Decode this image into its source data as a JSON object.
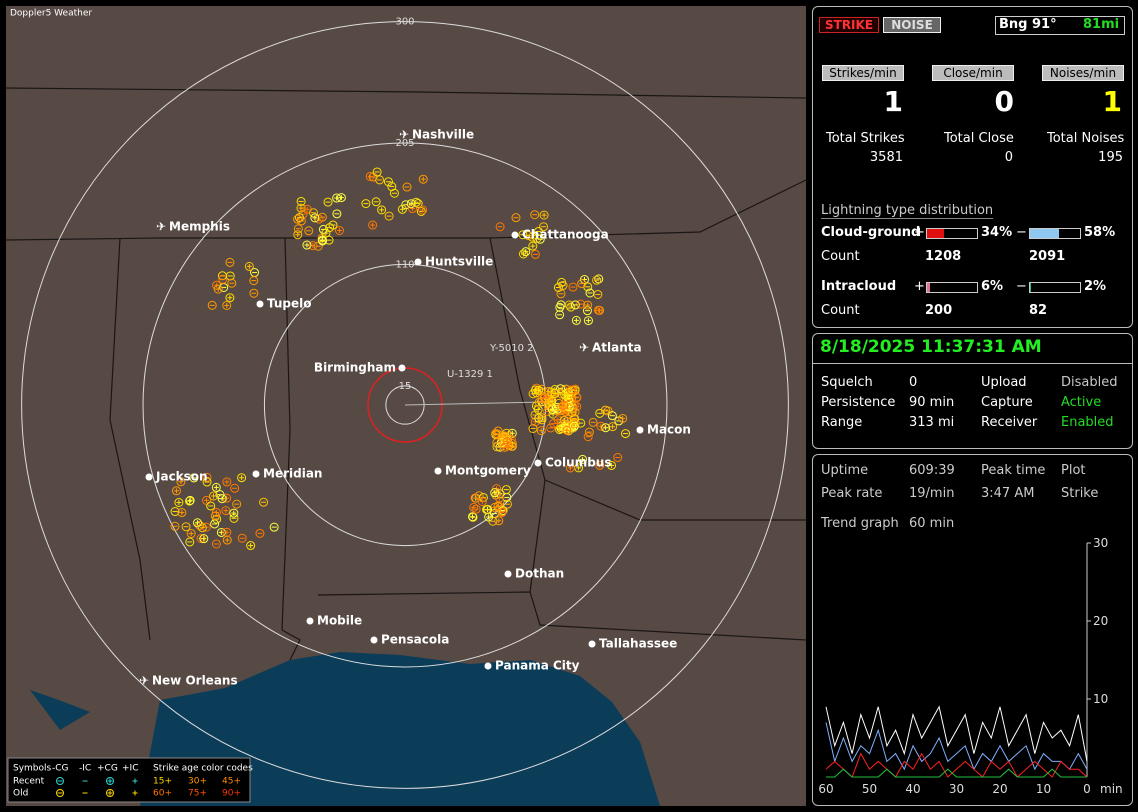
{
  "app_title": "Doppler5 Weather",
  "map": {
    "range_miles": 313,
    "range_rings": [
      300,
      205,
      110,
      15
    ],
    "cities": [
      {
        "name": "Nashville",
        "airport": true
      },
      {
        "name": "Memphis",
        "airport": true
      },
      {
        "name": "Chattanooga",
        "airport": false
      },
      {
        "name": "Huntsville",
        "airport": false
      },
      {
        "name": "Tupelo",
        "airport": false
      },
      {
        "name": "Birmingham",
        "airport": false
      },
      {
        "name": "Atlanta",
        "airport": true
      },
      {
        "name": "Macon",
        "airport": false
      },
      {
        "name": "Columbus",
        "airport": false
      },
      {
        "name": "Montgomery",
        "airport": false
      },
      {
        "name": "Meridian",
        "airport": false
      },
      {
        "name": "Jackson",
        "airport": false
      },
      {
        "name": "Dothan",
        "airport": false
      },
      {
        "name": "Mobile",
        "airport": false
      },
      {
        "name": "Pensacola",
        "airport": false
      },
      {
        "name": "Tallahassee",
        "airport": false
      },
      {
        "name": "Panama City",
        "airport": false
      },
      {
        "name": "New Orleans",
        "airport": true
      }
    ],
    "stations": [
      "Y-5010 2",
      "U-1329 1"
    ],
    "legend": {
      "symbols_label": "Symbols",
      "columns": [
        "-CG",
        "-IC",
        "+CG",
        "+IC"
      ],
      "age_label": "Strike age color codes",
      "rows": [
        {
          "label": "Recent",
          "ages": [
            "15+",
            "30+",
            "45+"
          ]
        },
        {
          "label": "Old",
          "ages": [
            "60+",
            "75+",
            "90+"
          ]
        }
      ]
    }
  },
  "status": {
    "buttons": [
      "STRIKE",
      "NOISE"
    ],
    "bearing": "Bng 91°",
    "distance": "81mi",
    "rates": [
      {
        "label": "Strikes/min",
        "value": 1
      },
      {
        "label": "Close/min",
        "value": 0
      },
      {
        "label": "Noises/min",
        "value": 1
      }
    ],
    "totals": [
      {
        "label": "Total Strikes",
        "value": 3581
      },
      {
        "label": "Total Close",
        "value": 0
      },
      {
        "label": "Total Noises",
        "value": 195
      }
    ]
  },
  "distribution": {
    "title": "Lightning type distribution",
    "count_label": "Count",
    "positive_sign": "+",
    "negative_sign": "−",
    "rows": [
      {
        "label": "Cloud-ground",
        "positive": {
          "value": 34,
          "label": "34%",
          "color": "#e01010"
        },
        "negative": {
          "value": 58,
          "label": "58%",
          "color": "#8ec8f0"
        },
        "positive_count": 1208,
        "negative_count": 2091
      },
      {
        "label": "Intracloud",
        "positive": {
          "value": 6,
          "label": "6%",
          "color": "#e070a0"
        },
        "negative": {
          "value": 2,
          "label": "2%",
          "color": "#20c070"
        },
        "positive_count": 200,
        "negative_count": 82
      }
    ]
  },
  "settings": {
    "datetime": "8/18/2025 11:37:31 AM",
    "items": [
      {
        "label": "Squelch",
        "value": "0"
      },
      {
        "label": "Upload",
        "value": "Disabled",
        "color": "#c8c8c8"
      },
      {
        "label": "Persistence",
        "value": "90 min"
      },
      {
        "label": "Capture",
        "value": "Active",
        "color": "#22dd22"
      },
      {
        "label": "Range",
        "value": "313 mi"
      },
      {
        "label": "Receiver",
        "value": "Enabled",
        "color": "#22dd22"
      }
    ]
  },
  "stats": {
    "uptime": {
      "label": "Uptime",
      "value": "609:39"
    },
    "peak_time": {
      "label": "Peak time",
      "value": "3:47 AM"
    },
    "plot": {
      "label": "Plot",
      "value": "Strike"
    },
    "peak_rate": {
      "label": "Peak rate",
      "value": "19/min"
    },
    "trend": {
      "label": "Trend graph",
      "value": "60 min"
    }
  },
  "trend_graph": {
    "type": "line",
    "x_unit": "min",
    "xlim": [
      60,
      0
    ],
    "ylim": [
      0,
      30
    ],
    "xticks": [
      60,
      50,
      40,
      30,
      20,
      10,
      0
    ],
    "yticks": [
      30,
      20,
      10
    ],
    "x": [
      60,
      58,
      56,
      54,
      52,
      50,
      48,
      46,
      44,
      42,
      40,
      38,
      36,
      34,
      32,
      30,
      28,
      26,
      24,
      22,
      20,
      18,
      16,
      14,
      12,
      10,
      8,
      6,
      4,
      2,
      0
    ],
    "series": [
      {
        "color": "#ffffff",
        "values": [
          9,
          4,
          7,
          3,
          8,
          5,
          9,
          4,
          6,
          3,
          8,
          5,
          7,
          9,
          4,
          6,
          8,
          3,
          7,
          5,
          9,
          4,
          6,
          8,
          3,
          7,
          5,
          6,
          4,
          8,
          2
        ]
      },
      {
        "color": "#7fb0ff",
        "values": [
          7,
          2,
          5,
          2,
          4,
          3,
          6,
          2,
          3,
          1,
          4,
          2,
          3,
          5,
          2,
          3,
          4,
          1,
          3,
          2,
          4,
          2,
          3,
          4,
          1,
          3,
          2,
          2,
          1,
          3,
          1
        ]
      },
      {
        "color": "#ff2020",
        "values": [
          1,
          2,
          1,
          0,
          3,
          1,
          2,
          1,
          0,
          2,
          1,
          3,
          1,
          2,
          0,
          1,
          2,
          1,
          0,
          2,
          1,
          2,
          0,
          1,
          2,
          1,
          0,
          2,
          1,
          1,
          0
        ]
      },
      {
        "color": "#20c040",
        "values": [
          0,
          0,
          1,
          0,
          0,
          0,
          0,
          1,
          0,
          0,
          0,
          0,
          0,
          0,
          1,
          0,
          0,
          0,
          0,
          0,
          0,
          1,
          0,
          0,
          0,
          0,
          1,
          0,
          0,
          0,
          0
        ]
      }
    ]
  }
}
